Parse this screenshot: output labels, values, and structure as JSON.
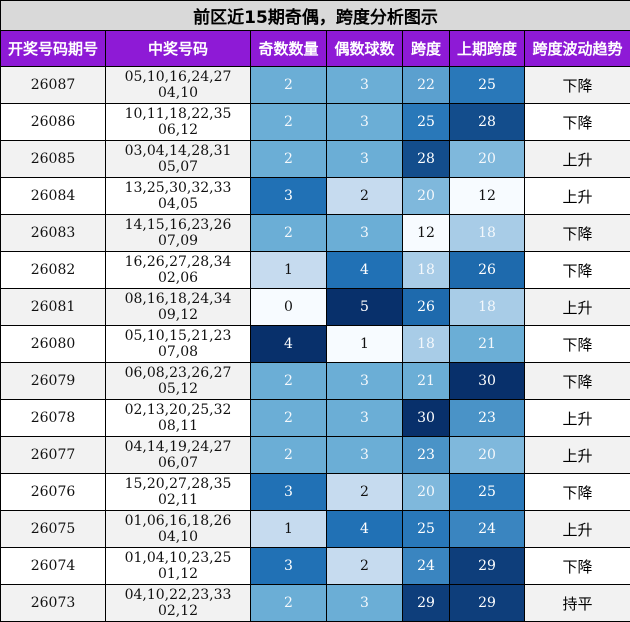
{
  "title": "前区近15期奇偶，跨度分析图示",
  "headers": [
    "开奖号码期号",
    "中奖号码",
    "奇数数量",
    "偶数球数",
    "跨度",
    "上期跨度",
    "跨度波动趋势"
  ],
  "rows": [
    {
      "id": "26087",
      "nums": "05,10,16,24,27 04,10",
      "odd": "2",
      "even": "3",
      "span": "22",
      "prev_span": "25",
      "trend": "下降"
    },
    {
      "id": "26086",
      "nums": "10,11,18,22,35 06,12",
      "odd": "2",
      "even": "3",
      "span": "25",
      "prev_span": "28",
      "trend": "下降"
    },
    {
      "id": "26085",
      "nums": "03,04,14,28,31 05,07",
      "odd": "2",
      "even": "3",
      "span": "28",
      "prev_span": "20",
      "trend": "上升"
    },
    {
      "id": "26084",
      "nums": "13,25,30,32,33 04,05",
      "odd": "3",
      "even": "2",
      "span": "20",
      "prev_span": "12",
      "trend": "上升"
    },
    {
      "id": "26083",
      "nums": "14,15,16,23,26 07,09",
      "odd": "2",
      "even": "3",
      "span": "12",
      "prev_span": "18",
      "trend": "下降"
    },
    {
      "id": "26082",
      "nums": "16,26,27,28,34 02,06",
      "odd": "1",
      "even": "4",
      "span": "18",
      "prev_span": "26",
      "trend": "下降"
    },
    {
      "id": "26081",
      "nums": "08,16,18,24,34 09,12",
      "odd": "0",
      "even": "5",
      "span": "26",
      "prev_span": "18",
      "trend": "上升"
    },
    {
      "id": "26080",
      "nums": "05,10,15,21,23 07,08",
      "odd": "4",
      "even": "1",
      "span": "18",
      "prev_span": "21",
      "trend": "下降"
    },
    {
      "id": "26079",
      "nums": "06,08,23,26,27 05,12",
      "odd": "2",
      "even": "3",
      "span": "21",
      "prev_span": "30",
      "trend": "下降"
    },
    {
      "id": "26078",
      "nums": "02,13,20,25,32 08,11",
      "odd": "2",
      "even": "3",
      "span": "30",
      "prev_span": "23",
      "trend": "上升"
    },
    {
      "id": "26077",
      "nums": "04,14,19,24,27 06,07",
      "odd": "2",
      "even": "3",
      "span": "23",
      "prev_span": "20",
      "trend": "上升"
    },
    {
      "id": "26076",
      "nums": "15,20,27,28,35 02,11",
      "odd": "3",
      "even": "2",
      "span": "20",
      "prev_span": "25",
      "trend": "下降"
    },
    {
      "id": "26075",
      "nums": "01,06,16,18,26 04,10",
      "odd": "1",
      "even": "4",
      "span": "25",
      "prev_span": "24",
      "trend": "上升"
    },
    {
      "id": "26074",
      "nums": "01,04,10,23,25 01,12",
      "odd": "3",
      "even": "2",
      "span": "24",
      "prev_span": "29",
      "trend": "下降"
    },
    {
      "id": "26073",
      "nums": "04,10,22,23,33 02,12",
      "odd": "2",
      "even": "3",
      "span": "29",
      "prev_span": "29",
      "trend": "持平"
    }
  ],
  "colors": {
    "title_bg": "#d9d9d9",
    "header_bg": "#8e1ad6",
    "header_text": "#ffffff",
    "row_alt_bg": "#f2f2f2",
    "row_bg": "#ffffff",
    "heat_scale": [
      "#f7fbff",
      "#c6dbef",
      "#6baed6",
      "#2171b5",
      "#08306b"
    ]
  }
}
